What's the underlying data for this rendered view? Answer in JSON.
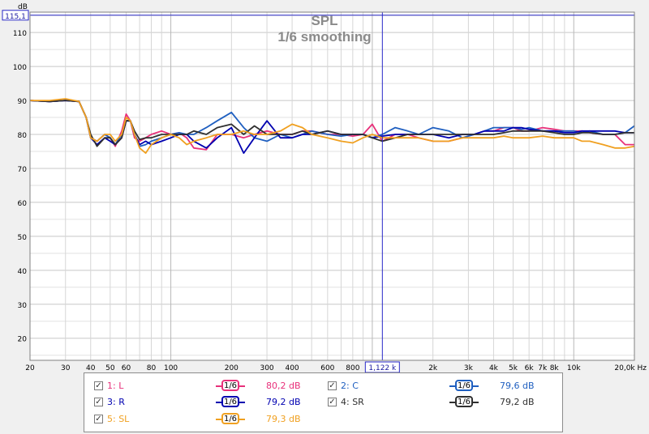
{
  "chart_data": {
    "type": "line",
    "title": "SPL",
    "subtitle": "1/6 smoothing",
    "ylabel": "dB",
    "xunit": "Hz",
    "xscale": "log",
    "xlim": [
      20,
      20000
    ],
    "ylim": [
      13.5,
      116
    ],
    "grid": true,
    "yticks": [
      20,
      30,
      40,
      50,
      60,
      70,
      80,
      90,
      100,
      110
    ],
    "xticks": [
      {
        "v": 20,
        "label": "20"
      },
      {
        "v": 30,
        "label": "30"
      },
      {
        "v": 40,
        "label": "40"
      },
      {
        "v": 50,
        "label": "50"
      },
      {
        "v": 60,
        "label": "60"
      },
      {
        "v": 80,
        "label": "80"
      },
      {
        "v": 100,
        "label": "100"
      },
      {
        "v": 200,
        "label": "200"
      },
      {
        "v": 300,
        "label": "300"
      },
      {
        "v": 400,
        "label": "400"
      },
      {
        "v": 600,
        "label": "600"
      },
      {
        "v": 800,
        "label": "800"
      },
      {
        "v": 2000,
        "label": "2k"
      },
      {
        "v": 3000,
        "label": "3k"
      },
      {
        "v": 4000,
        "label": "4k"
      },
      {
        "v": 5000,
        "label": "5k"
      },
      {
        "v": 6000,
        "label": "6k"
      },
      {
        "v": 7000,
        "label": "7k"
      },
      {
        "v": 8000,
        "label": "8k"
      },
      {
        "v": 10000,
        "label": "10k"
      },
      {
        "v": 20000,
        "label": "20,0k Hz"
      }
    ],
    "cursor": {
      "x": 1122,
      "x_label": "1,122 k",
      "y": 115.1,
      "y_label": "115,1"
    },
    "series": [
      {
        "name": "1: L",
        "color": "#e8307a",
        "smoothing": "1/6",
        "value_label": "80,2 dB",
        "x": [
          20,
          25,
          30,
          35,
          38,
          40,
          43,
          47,
          50,
          53,
          57,
          60,
          63,
          66,
          70,
          75,
          80,
          90,
          100,
          110,
          120,
          130,
          150,
          170,
          200,
          230,
          260,
          300,
          350,
          400,
          450,
          500,
          600,
          700,
          800,
          900,
          1000,
          1122,
          1300,
          1500,
          1700,
          2000,
          2400,
          2800,
          3200,
          3600,
          4000,
          4500,
          5000,
          5500,
          6000,
          7000,
          8000,
          9000,
          10000,
          11000,
          12000,
          14000,
          16000,
          18000,
          20000
        ],
        "y": [
          90,
          89.7,
          90,
          89.7,
          85,
          79,
          78,
          80,
          79,
          76.5,
          81,
          86,
          84,
          79,
          78,
          79,
          80,
          81,
          80,
          80.5,
          79,
          76,
          75.5,
          80,
          80,
          79,
          80,
          81,
          80,
          80,
          81,
          81,
          80,
          80,
          79.5,
          80,
          83,
          78,
          80,
          80,
          79,
          78,
          78,
          79,
          80,
          81,
          81,
          82,
          82,
          81,
          81,
          82,
          81.5,
          81,
          81,
          81,
          80.5,
          80,
          80,
          77,
          77
        ]
      },
      {
        "name": "2: C",
        "color": "#1f5fc0",
        "smoothing": "1/6",
        "value_label": "79,6 dB",
        "x": [
          20,
          25,
          30,
          35,
          38,
          40,
          43,
          47,
          50,
          53,
          57,
          60,
          63,
          66,
          70,
          75,
          80,
          90,
          100,
          110,
          120,
          130,
          150,
          170,
          200,
          230,
          260,
          300,
          350,
          400,
          450,
          500,
          600,
          700,
          800,
          900,
          1000,
          1122,
          1300,
          1500,
          1700,
          2000,
          2400,
          2800,
          3200,
          3600,
          4000,
          4500,
          5000,
          5500,
          6000,
          7000,
          8000,
          9000,
          10000,
          11000,
          12000,
          14000,
          16000,
          18000,
          20000
        ],
        "y": [
          90,
          89.7,
          90,
          89.7,
          85,
          79,
          78,
          80,
          79,
          77,
          80,
          84,
          84,
          80,
          76.5,
          77,
          78,
          79,
          80,
          80.5,
          80,
          80,
          82,
          84,
          86.5,
          82,
          79,
          78,
          80,
          79,
          80,
          81,
          80,
          79.5,
          80,
          80,
          79,
          80,
          82,
          81,
          80,
          82,
          81,
          79,
          80,
          81,
          82,
          82,
          82,
          81.5,
          82,
          81,
          81,
          81,
          81,
          80.5,
          81,
          80,
          80,
          80.5,
          82.5
        ]
      },
      {
        "name": "3: R",
        "color": "#0000b0",
        "smoothing": "1/6",
        "value_label": "79,2 dB",
        "x": [
          20,
          25,
          30,
          35,
          38,
          40,
          43,
          47,
          50,
          53,
          57,
          60,
          63,
          66,
          70,
          75,
          80,
          90,
          100,
          110,
          120,
          130,
          150,
          170,
          200,
          230,
          260,
          300,
          350,
          400,
          450,
          500,
          600,
          700,
          800,
          900,
          1000,
          1122,
          1300,
          1500,
          1700,
          2000,
          2400,
          2800,
          3200,
          3600,
          4000,
          4500,
          5000,
          5500,
          6000,
          7000,
          8000,
          9000,
          10000,
          11000,
          12000,
          14000,
          16000,
          18000,
          20000
        ],
        "y": [
          90,
          89.7,
          90,
          89.7,
          85,
          79,
          77,
          79,
          78,
          77,
          79,
          84,
          84,
          80,
          77,
          78,
          77,
          78,
          79,
          80,
          80,
          78,
          76,
          79,
          82,
          74.5,
          79,
          84,
          79,
          79,
          80,
          80,
          81,
          80,
          80,
          80,
          79,
          79.5,
          80,
          80,
          80,
          80,
          79,
          80,
          80,
          81,
          81,
          81,
          82,
          82,
          81.5,
          81,
          81,
          80.5,
          80.5,
          81,
          81,
          81,
          81,
          80.5,
          80.5
        ]
      },
      {
        "name": "4: SR",
        "color": "#303030",
        "smoothing": "1/6",
        "value_label": "79,2 dB",
        "x": [
          20,
          25,
          30,
          35,
          38,
          40,
          43,
          47,
          50,
          53,
          57,
          60,
          63,
          66,
          70,
          75,
          80,
          90,
          100,
          110,
          120,
          130,
          150,
          170,
          200,
          230,
          260,
          300,
          350,
          400,
          450,
          500,
          600,
          700,
          800,
          900,
          1000,
          1122,
          1300,
          1500,
          1700,
          2000,
          2400,
          2800,
          3200,
          3600,
          4000,
          4500,
          5000,
          5500,
          6000,
          7000,
          8000,
          9000,
          10000,
          11000,
          12000,
          14000,
          16000,
          18000,
          20000
        ],
        "y": [
          90,
          89.7,
          90,
          89.7,
          85,
          80,
          76.5,
          79,
          79,
          77,
          79,
          84,
          84,
          81,
          78.5,
          79,
          79,
          80,
          80,
          80,
          80,
          81,
          80,
          82,
          83,
          80,
          82.5,
          80,
          80,
          80,
          81,
          80,
          81,
          80,
          80,
          80,
          79,
          78,
          79,
          80,
          80,
          80,
          80,
          80,
          80,
          80,
          80,
          80.5,
          81,
          81,
          81,
          81,
          80.5,
          80,
          80,
          80.5,
          80.5,
          80,
          80,
          80.5,
          80.5
        ]
      },
      {
        "name": "5: SL",
        "color": "#f0a020",
        "smoothing": "1/6",
        "value_label": "79,3 dB",
        "x": [
          20,
          25,
          30,
          35,
          38,
          40,
          43,
          47,
          50,
          53,
          57,
          60,
          63,
          66,
          70,
          75,
          80,
          90,
          100,
          110,
          120,
          130,
          150,
          170,
          200,
          230,
          260,
          300,
          350,
          400,
          450,
          500,
          600,
          700,
          800,
          900,
          1000,
          1122,
          1300,
          1500,
          1700,
          2000,
          2400,
          2800,
          3200,
          3600,
          4000,
          4500,
          5000,
          5500,
          6000,
          7000,
          8000,
          9000,
          10000,
          11000,
          12000,
          14000,
          16000,
          18000,
          20000
        ],
        "y": [
          90,
          90,
          90.5,
          89.7,
          85,
          79,
          78,
          80,
          80,
          78,
          80,
          85,
          84,
          80,
          76,
          74.5,
          77,
          79,
          80,
          79,
          77,
          78,
          79,
          80,
          80,
          81,
          80,
          80,
          81,
          83,
          82,
          80,
          79,
          78,
          77.5,
          79,
          80,
          79,
          79,
          79,
          79,
          78,
          78,
          79,
          79,
          79,
          79,
          79.5,
          79,
          79,
          79,
          79.5,
          79,
          79,
          79,
          78,
          78,
          77,
          76,
          76,
          76.5
        ]
      }
    ]
  }
}
